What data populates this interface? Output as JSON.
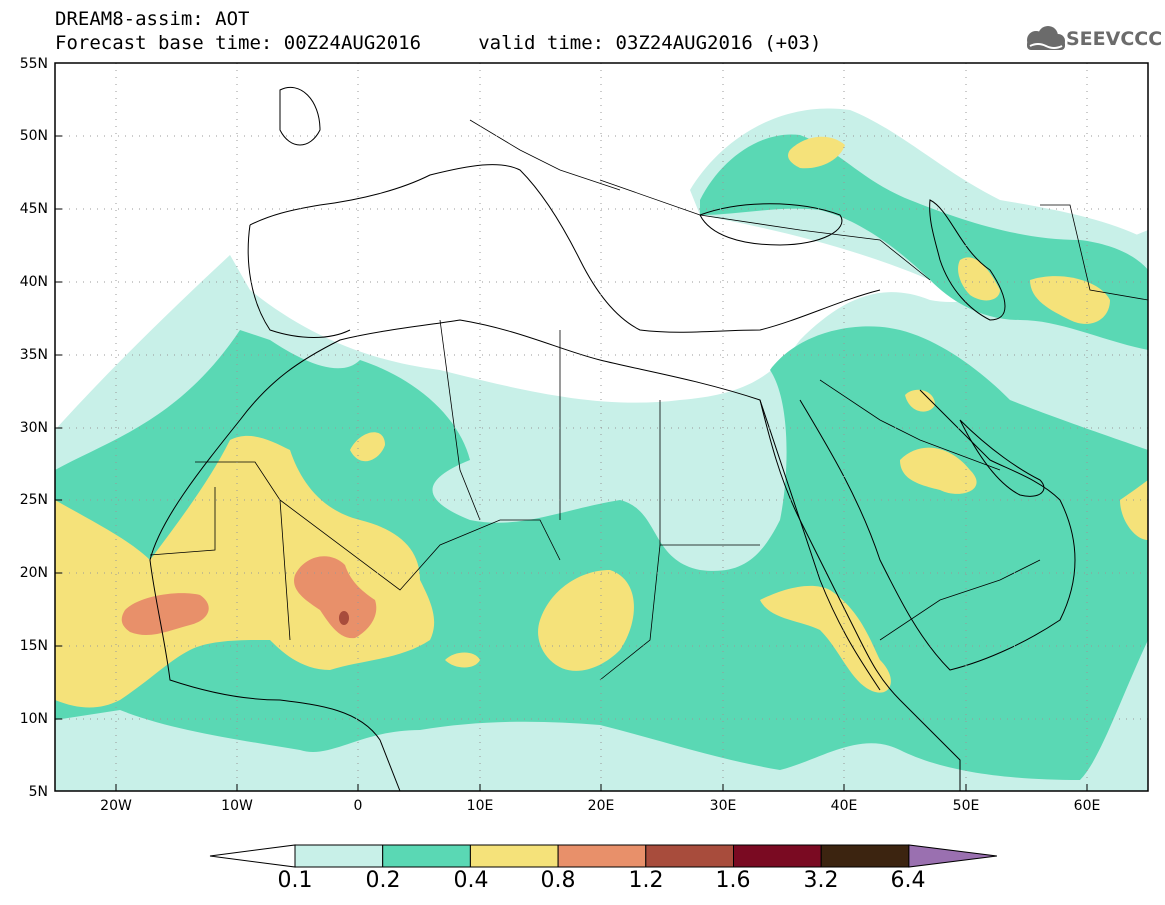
{
  "header": {
    "title_line1": "DREAM8-assim: AOT",
    "title_line2": "Forecast base time: 00Z24AUG2016     valid time: 03Z24AUG2016 (+03)",
    "logo_text": "SEEVCCC"
  },
  "map": {
    "lon_range": [
      -25,
      65
    ],
    "lat_range": [
      5,
      55
    ],
    "lat_labels": [
      "55N",
      "50N",
      "45N",
      "40N",
      "35N",
      "30N",
      "25N",
      "20N",
      "15N",
      "10N",
      "5N"
    ],
    "lon_labels": [
      "20W",
      "10W",
      "0",
      "10E",
      "20E",
      "30E",
      "40E",
      "50E",
      "60E"
    ],
    "grid": "dotted"
  },
  "legend": {
    "labels": [
      "0.1",
      "0.2",
      "0.4",
      "0.8",
      "1.2",
      "1.6",
      "3.2",
      "6.4"
    ],
    "colors": [
      "#ffffff",
      "#c8f0e8",
      "#5ad8b4",
      "#f5e27a",
      "#e8906a",
      "#a84c3c",
      "#7a0a22",
      "#3c2410",
      "#9a70b0"
    ]
  }
}
